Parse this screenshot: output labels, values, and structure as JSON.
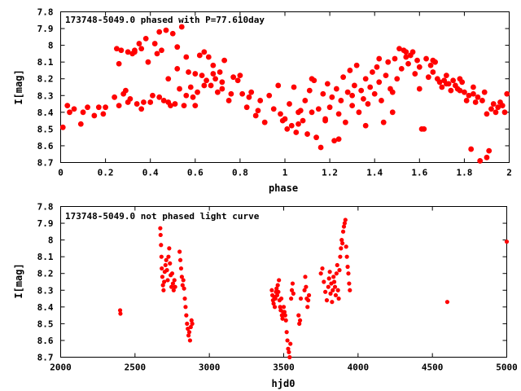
{
  "chart_data": [
    {
      "type": "scatter",
      "title": "173748-5049.0 phased with P=77.610day",
      "xlabel": "phase",
      "ylabel": "I[mag]",
      "xlim": [
        0,
        2
      ],
      "ylim": [
        8.7,
        7.8
      ],
      "y_inverted": true,
      "xticks": [
        "0",
        "0.2",
        "0.4",
        "0.6",
        "0.8",
        "1",
        "1.2",
        "1.4",
        "1.6",
        "1.8",
        "2"
      ],
      "yticks": [
        "7.8",
        "7.9",
        "8",
        "8.1",
        "8.2",
        "8.3",
        "8.4",
        "8.5",
        "8.6",
        "8.7"
      ],
      "grid": false,
      "marker_color": "#ff0000",
      "series": [
        {
          "x": [
            0.01,
            0.03,
            0.04,
            0.06,
            0.09,
            0.1,
            0.12,
            0.15,
            0.17,
            0.19,
            0.2,
            0.24,
            0.25,
            0.26,
            0.27,
            0.28,
            0.29,
            0.3,
            0.31,
            0.32,
            0.33,
            0.34,
            0.35,
            0.36,
            0.37,
            0.38,
            0.39,
            0.4,
            0.41,
            0.43,
            0.44,
            0.45,
            0.46,
            0.47,
            0.48,
            0.49,
            0.5,
            0.51,
            0.52,
            0.53,
            0.54,
            0.55,
            0.56,
            0.57,
            0.58,
            0.59,
            0.6,
            0.61,
            0.62,
            0.63,
            0.64,
            0.65,
            0.66,
            0.67,
            0.68,
            0.69,
            0.7,
            0.71,
            0.72,
            0.73,
            0.75,
            0.77,
            0.79,
            0.81,
            0.83,
            0.85,
            0.87,
            0.89,
            0.91,
            0.93,
            0.95,
            0.97,
            0.98,
            0.99,
            1.0,
            1.01,
            1.02,
            1.03,
            1.04,
            1.05,
            1.06,
            1.07,
            1.08,
            1.09,
            1.1,
            1.11,
            1.12,
            1.13,
            1.14,
            1.15,
            1.16,
            1.17,
            1.18,
            1.19,
            1.2,
            1.21,
            1.22,
            1.23,
            1.24,
            1.25,
            1.26,
            1.27,
            1.28,
            1.29,
            1.3,
            1.31,
            1.32,
            1.33,
            1.34,
            1.35,
            1.36,
            1.37,
            1.38,
            1.39,
            1.4,
            1.41,
            1.42,
            1.43,
            1.44,
            1.45,
            1.46,
            1.47,
            1.48,
            1.49,
            1.5,
            1.51,
            1.52,
            1.53,
            1.54,
            1.55,
            1.56,
            1.57,
            1.58,
            1.59,
            1.6,
            1.61,
            1.62,
            1.63,
            1.64,
            1.65,
            1.66,
            1.67,
            1.68,
            1.69,
            1.7,
            1.71,
            1.72,
            1.73,
            1.74,
            1.75,
            1.76,
            1.77,
            1.78,
            1.79,
            1.8,
            1.81,
            1.82,
            1.83,
            1.84,
            1.85,
            1.86,
            1.87,
            1.88,
            1.89,
            1.9,
            1.91,
            1.92,
            1.93,
            1.94,
            1.95,
            1.96,
            1.97,
            1.98,
            1.99,
            0.26,
            0.3,
            0.33,
            0.36,
            0.42,
            0.44,
            0.48,
            0.52,
            0.56,
            0.6,
            0.64,
            0.68,
            0.72,
            0.76,
            0.8,
            0.84,
            0.88,
            1.06,
            1.12,
            1.18,
            1.24,
            1.3,
            1.36,
            1.42,
            1.48,
            1.54,
            1.6,
            1.66,
            1.72,
            1.78,
            1.84,
            1.9
          ],
          "y": [
            8.49,
            8.36,
            8.4,
            8.38,
            8.47,
            8.4,
            8.37,
            8.42,
            8.37,
            8.41,
            8.37,
            8.31,
            8.02,
            8.11,
            8.03,
            8.29,
            8.27,
            8.04,
            8.32,
            8.05,
            8.03,
            8.35,
            7.99,
            8.02,
            8.34,
            7.96,
            8.1,
            8.34,
            8.3,
            8.05,
            7.92,
            8.03,
            8.33,
            7.91,
            8.2,
            8.36,
            7.93,
            8.35,
            8.01,
            8.26,
            7.89,
            8.36,
            8.07,
            8.16,
            8.25,
            8.31,
            8.17,
            8.28,
            8.06,
            8.18,
            8.04,
            8.21,
            8.07,
            8.24,
            8.12,
            8.2,
            8.28,
            8.16,
            8.26,
            8.09,
            8.33,
            8.19,
            8.21,
            8.29,
            8.37,
            8.28,
            8.42,
            8.33,
            8.46,
            8.3,
            8.38,
            8.24,
            8.41,
            8.45,
            8.44,
            8.5,
            8.35,
            8.48,
            8.25,
            8.52,
            8.47,
            8.39,
            8.45,
            8.33,
            8.53,
            8.27,
            8.4,
            8.21,
            8.55,
            8.38,
            8.61,
            8.29,
            8.44,
            8.23,
            8.37,
            8.31,
            8.57,
            8.26,
            8.41,
            8.33,
            8.19,
            8.46,
            8.28,
            8.15,
            8.36,
            8.24,
            8.12,
            8.4,
            8.27,
            8.32,
            8.2,
            8.35,
            8.25,
            8.16,
            8.29,
            8.13,
            8.22,
            8.33,
            8.46,
            8.18,
            8.1,
            8.26,
            8.4,
            8.08,
            8.2,
            8.02,
            8.14,
            8.03,
            8.07,
            8.11,
            8.06,
            8.04,
            8.17,
            8.09,
            8.13,
            8.5,
            8.5,
            8.08,
            8.19,
            8.12,
            8.16,
            8.1,
            8.2,
            8.22,
            8.25,
            8.21,
            8.18,
            8.23,
            8.27,
            8.21,
            8.24,
            8.26,
            8.2,
            8.22,
            8.28,
            8.33,
            8.3,
            8.62,
            8.25,
            8.34,
            8.31,
            8.69,
            8.33,
            8.28,
            8.67,
            8.63,
            8.38,
            8.35,
            8.4,
            8.37,
            8.34,
            8.36,
            8.4,
            8.29,
            8.36,
            8.34,
            8.04,
            8.38,
            7.99,
            8.31,
            8.34,
            8.14,
            8.3,
            8.36,
            8.24,
            8.17,
            8.22,
            8.29,
            8.18,
            8.31,
            8.39,
            8.4,
            8.2,
            8.45,
            8.56,
            8.3,
            8.48,
            8.08,
            8.28,
            8.04,
            8.26,
            8.09,
            8.23,
            8.27,
            8.29,
            8.41
          ]
        }
      ]
    },
    {
      "type": "scatter",
      "title": "173748-5049.0 not phased light curve",
      "xlabel": "hjd0",
      "ylabel": "I[mag]",
      "xlim": [
        2000,
        5000
      ],
      "ylim": [
        8.7,
        7.8
      ],
      "y_inverted": true,
      "xticks": [
        "2000",
        "2500",
        "3000",
        "3500",
        "4000",
        "4500",
        "5000"
      ],
      "yticks": [
        "7.8",
        "7.9",
        "8",
        "8.1",
        "8.2",
        "8.3",
        "8.4",
        "8.5",
        "8.6",
        "8.7"
      ],
      "grid": false,
      "marker_color": "#ff0000",
      "series": [
        {
          "x": [
            2400,
            2402,
            2670,
            2672,
            2675,
            2678,
            2680,
            2684,
            2688,
            2692,
            2696,
            2700,
            2705,
            2710,
            2715,
            2720,
            2725,
            2730,
            2735,
            2740,
            2745,
            2750,
            2755,
            2760,
            2765,
            2770,
            2800,
            2805,
            2810,
            2815,
            2820,
            2825,
            2830,
            2835,
            2840,
            2845,
            2850,
            2855,
            2860,
            2865,
            2870,
            2875,
            2880,
            2885,
            3420,
            3424,
            3428,
            3432,
            3436,
            3440,
            3444,
            3448,
            3452,
            3456,
            3460,
            3464,
            3468,
            3472,
            3476,
            3480,
            3484,
            3488,
            3492,
            3496,
            3500,
            3505,
            3510,
            3515,
            3520,
            3525,
            3530,
            3535,
            3540,
            3545,
            3550,
            3555,
            3560,
            3565,
            3600,
            3605,
            3610,
            3615,
            3640,
            3645,
            3650,
            3655,
            3660,
            3665,
            3670,
            3750,
            3760,
            3770,
            3780,
            3790,
            3800,
            3805,
            3810,
            3815,
            3820,
            3825,
            3830,
            3835,
            3840,
            3845,
            3850,
            3855,
            3860,
            3865,
            3870,
            3875,
            3880,
            3885,
            3890,
            3895,
            3900,
            3905,
            3910,
            3915,
            3920,
            3925,
            3930,
            3935,
            3940,
            3945,
            4600,
            5000
          ],
          "y": [
            8.42,
            8.44,
            7.93,
            7.97,
            8.03,
            8.1,
            8.17,
            8.22,
            8.27,
            8.3,
            8.25,
            8.19,
            8.15,
            8.12,
            8.18,
            8.24,
            8.1,
            8.05,
            8.14,
            8.21,
            8.28,
            8.2,
            8.26,
            8.3,
            8.24,
            8.28,
            8.07,
            8.12,
            8.17,
            8.22,
            8.27,
            8.24,
            8.29,
            8.35,
            8.4,
            8.45,
            8.5,
            8.53,
            8.57,
            8.55,
            8.6,
            8.52,
            8.48,
            8.5,
            8.3,
            8.33,
            8.36,
            8.38,
            8.34,
            8.4,
            8.35,
            8.31,
            8.29,
            8.33,
            8.27,
            8.31,
            8.24,
            8.36,
            8.4,
            8.42,
            8.35,
            8.45,
            8.47,
            8.43,
            8.4,
            8.43,
            8.45,
            8.48,
            8.55,
            8.6,
            8.65,
            8.67,
            8.7,
            8.62,
            8.35,
            8.3,
            8.26,
            8.32,
            8.45,
            8.5,
            8.48,
            8.35,
            8.3,
            8.22,
            8.28,
            8.35,
            8.4,
            8.36,
            8.33,
            8.2,
            8.17,
            8.25,
            8.31,
            8.36,
            8.28,
            8.23,
            8.19,
            8.32,
            8.26,
            8.37,
            8.3,
            8.22,
            8.25,
            8.28,
            8.33,
            8.2,
            8.15,
            8.3,
            8.35,
            8.18,
            8.1,
            8.05,
            8.0,
            8.02,
            7.95,
            7.92,
            7.9,
            7.88,
            8.04,
            8.1,
            8.16,
            8.2,
            8.26,
            8.3,
            8.37,
            8.01
          ]
        }
      ]
    }
  ]
}
